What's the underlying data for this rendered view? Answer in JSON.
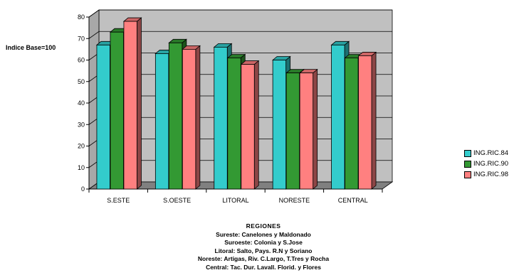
{
  "chart_data": {
    "type": "bar",
    "ylabel": "Indice Base=100",
    "xlabel": "",
    "ylim": [
      0,
      80
    ],
    "yticks": [
      "0",
      "10",
      "20",
      "30",
      "40",
      "50",
      "60",
      "70",
      "80"
    ],
    "grid": true,
    "legend_position": "right",
    "style": "3d-clustered-column",
    "categories": [
      "S.ESTE",
      "S.OESTE",
      "LITORAL",
      "NORESTE",
      "CENTRAL"
    ],
    "series": [
      {
        "name": "ING.RIC.84",
        "color": "#33CCCC",
        "values": [
          67,
          63,
          66,
          60,
          67
        ]
      },
      {
        "name": "ING.RIC.90",
        "color": "#339933",
        "values": [
          73,
          68,
          61,
          54,
          61
        ]
      },
      {
        "name": "ING.RIC.98",
        "color": "#FF8080",
        "values": [
          78,
          65,
          58,
          54,
          62
        ]
      }
    ],
    "wall_color": "#C0C0C0",
    "floor_color": "#808080"
  },
  "notes": {
    "title": "REGIONES",
    "lines": [
      "Sureste: Canelones y Maldonado",
      "Suroeste: Colonia y S.Jose",
      "Litoral: Salto, Pays. R.N y Soriano",
      "Noreste: Artigas, Riv. C.Largo, T.Tres y Rocha",
      "Central: Tac. Dur. Lavall. Florid. y Flores"
    ]
  }
}
